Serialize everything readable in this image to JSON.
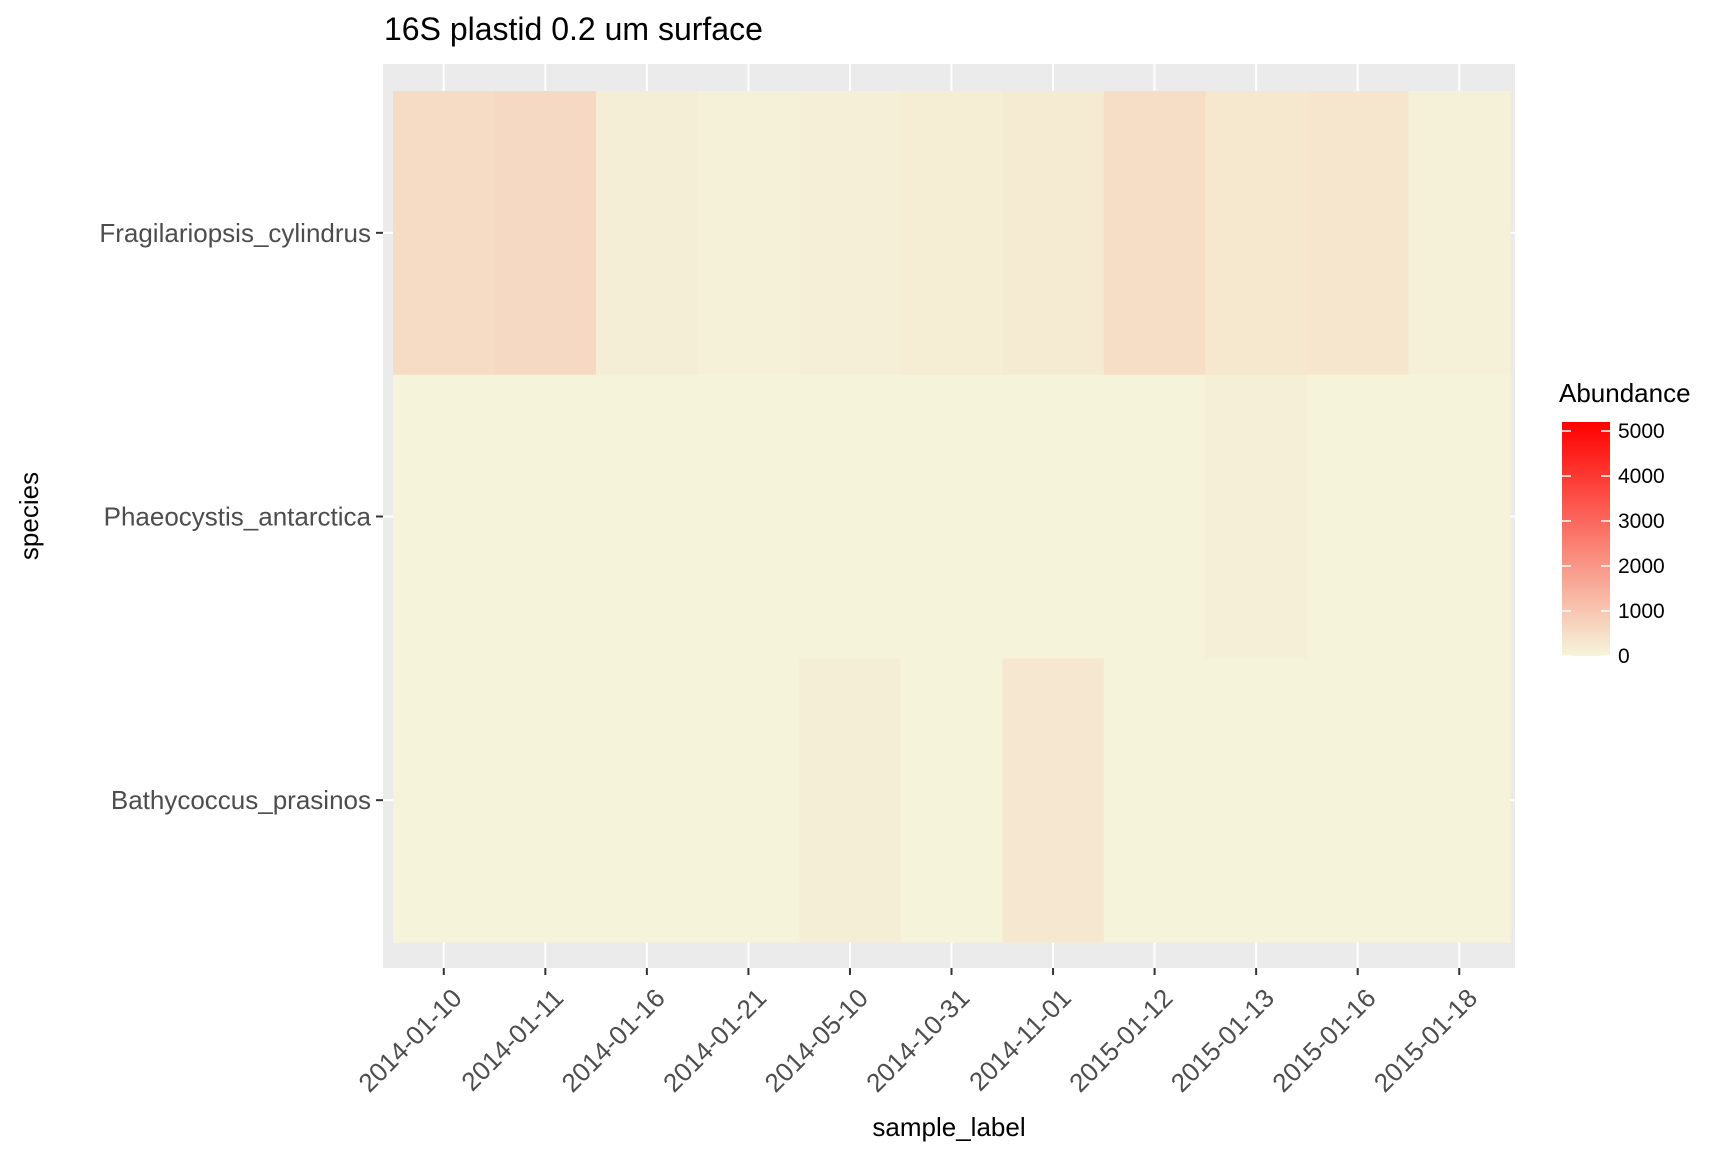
{
  "chart_data": {
    "type": "heatmap",
    "title": "16S plastid 0.2 um surface",
    "xlabel": "sample_label",
    "ylabel": "species",
    "x_categories": [
      "2014-01-10",
      "2014-01-11",
      "2014-01-16",
      "2014-01-21",
      "2014-05-10",
      "2014-10-31",
      "2014-11-01",
      "2015-01-12",
      "2015-01-13",
      "2015-01-16",
      "2015-01-18"
    ],
    "y_categories": [
      "Fragilariopsis_cylindrus",
      "Phaeocystis_antarctica",
      "Bathycoccus_prasinos"
    ],
    "values": [
      [
        550,
        600,
        150,
        80,
        120,
        180,
        220,
        520,
        300,
        320,
        100
      ],
      [
        30,
        30,
        30,
        30,
        30,
        30,
        30,
        30,
        120,
        30,
        30
      ],
      [
        30,
        30,
        30,
        30,
        150,
        30,
        280,
        30,
        30,
        30,
        30
      ]
    ],
    "legend": {
      "title": "Abundance",
      "ticks": [
        0,
        1000,
        2000,
        3000,
        4000,
        5000
      ],
      "range": [
        0,
        5200
      ],
      "low_color": "#f5f5dc",
      "high_color": "#ff0000",
      "position": "right"
    },
    "grid": true,
    "panel_color": "#ebebeb",
    "grid_color": "#ffffff"
  }
}
